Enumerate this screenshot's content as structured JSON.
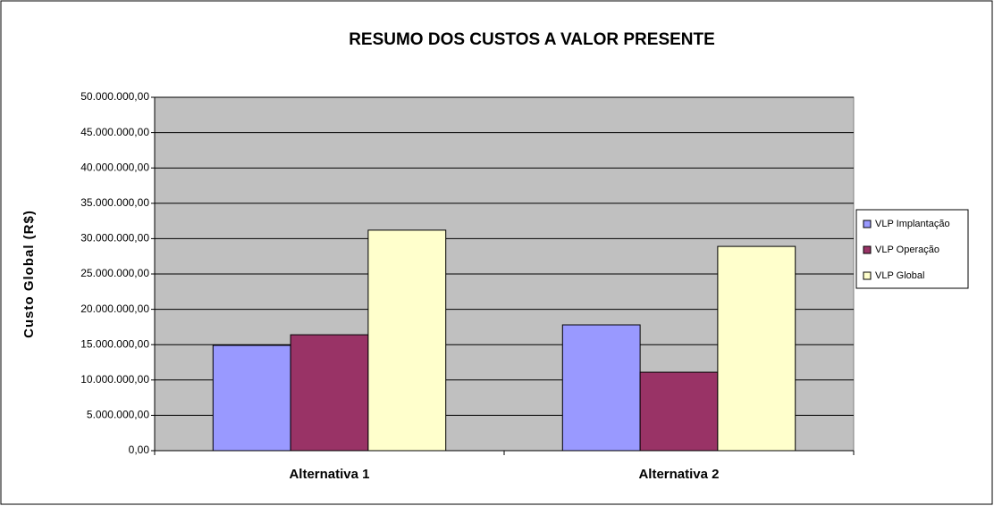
{
  "chart_data": {
    "type": "bar",
    "title": "RESUMO DOS CUSTOS A VALOR PRESENTE",
    "y_label": "Custo Global (R$)",
    "categories": [
      "Alternativa 1",
      "Alternativa 2"
    ],
    "series": [
      {
        "name": "VLP Implantação",
        "color": "#9999ff",
        "values": [
          14900000,
          17800000
        ]
      },
      {
        "name": "VLP Operação",
        "color": "#993366",
        "values": [
          16400000,
          11100000
        ]
      },
      {
        "name": "VLP Global",
        "color": "#ffffcc",
        "values": [
          31200000,
          28900000
        ]
      }
    ],
    "ylim": [
      0,
      50000000
    ],
    "yticks": [
      {
        "value": 0,
        "label": "0,00"
      },
      {
        "value": 5000000,
        "label": "5.000.000,00"
      },
      {
        "value": 10000000,
        "label": "10.000.000,00"
      },
      {
        "value": 15000000,
        "label": "15.000.000,00"
      },
      {
        "value": 20000000,
        "label": "20.000.000,00"
      },
      {
        "value": 25000000,
        "label": "25.000.000,00"
      },
      {
        "value": 30000000,
        "label": "30.000.000,00"
      },
      {
        "value": 35000000,
        "label": "35.000.000,00"
      },
      {
        "value": 40000000,
        "label": "40.000.000,00"
      },
      {
        "value": 45000000,
        "label": "45.000.000,00"
      },
      {
        "value": 50000000,
        "label": "50.000.000,00"
      }
    ],
    "grid": true,
    "legend": "right"
  }
}
